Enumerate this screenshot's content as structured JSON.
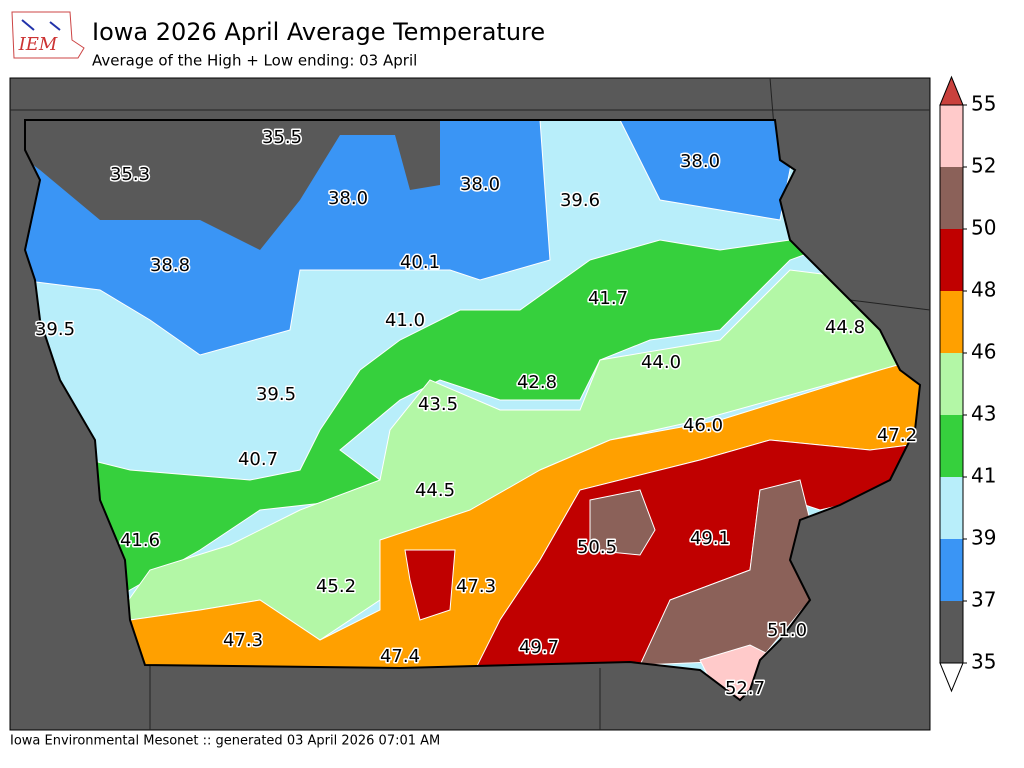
{
  "header": {
    "logo": "IEM",
    "title": "Iowa 2026 April Average Temperature",
    "subtitle": "Average of the High + Low ending: 03 April"
  },
  "map": {
    "labels": [
      "35.5",
      "35.3",
      "38.0",
      "38.0",
      "39.6",
      "38.0",
      "38.8",
      "40.1",
      "41.7",
      "39.5",
      "41.0",
      "44.8",
      "44.0",
      "42.8",
      "39.5",
      "43.5",
      "46.0",
      "47.2",
      "40.7",
      "44.5",
      "41.6",
      "50.5",
      "49.1",
      "45.2",
      "47.3",
      "51.0",
      "47.3",
      "47.4",
      "49.7",
      "52.7"
    ]
  },
  "colorbar": {
    "levels": [
      35,
      37,
      39,
      41,
      43,
      46,
      48,
      50,
      52,
      55
    ],
    "colors": [
      "#595959",
      "#3a95f5",
      "#b8eefa",
      "#36d03d",
      "#b3f7a6",
      "#ffa000",
      "#c00000",
      "#8b6159",
      "#ffcaca"
    ],
    "over_color": "#c9413d",
    "under_color": "#ffffff"
  },
  "footer": "Iowa Environmental Mesonet :: generated 03 April 2026 07:01 AM"
}
